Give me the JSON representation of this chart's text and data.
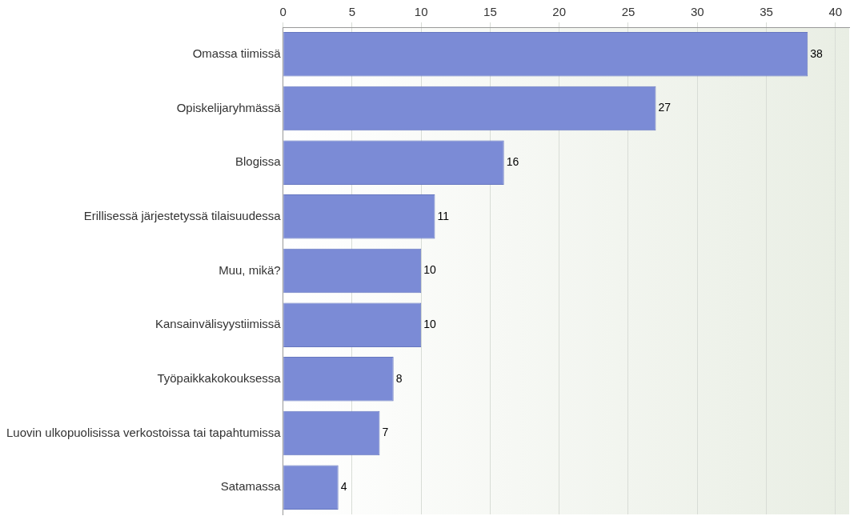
{
  "chart_data": {
    "type": "bar",
    "orientation": "horizontal",
    "categories": [
      "Omassa tiimissä",
      "Opiskelijaryhmässä",
      "Blogissa",
      "Erillisessä järjestetyssä tilaisuudessa",
      "Muu, mikä?",
      "Kansainvälisyystiimissä",
      "Työpaikkakokouksessa",
      "Luovin ulkopuolisissa verkostoissa tai tapahtumissa",
      "Satamassa"
    ],
    "values": [
      38,
      27,
      16,
      11,
      10,
      10,
      8,
      7,
      4
    ],
    "color": "#7b8bd6",
    "xlim": [
      0,
      41
    ],
    "xticks": [
      0,
      5,
      10,
      15,
      20,
      25,
      30,
      35,
      40
    ],
    "grid": "x",
    "legend": false,
    "data_labels": true
  }
}
